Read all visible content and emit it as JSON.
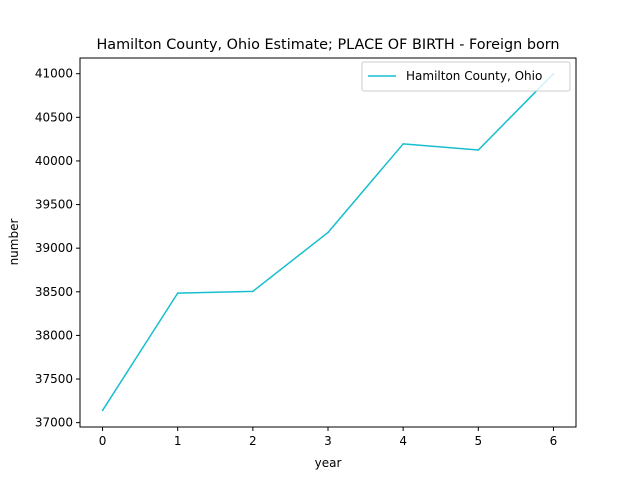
{
  "chart_data": {
    "type": "line",
    "title": "Hamilton County, Ohio Estimate; PLACE OF BIRTH - Foreign born",
    "xlabel": "year",
    "ylabel": "number",
    "x": [
      0,
      1,
      2,
      3,
      4,
      5,
      6
    ],
    "xticks": [
      "0",
      "1",
      "2",
      "3",
      "4",
      "5",
      "6"
    ],
    "yticks": [
      "37000",
      "37500",
      "38000",
      "38500",
      "39000",
      "39500",
      "40000",
      "40500",
      "41000"
    ],
    "xlim": [
      -0.3,
      6.3
    ],
    "ylim": [
      36950,
      41180
    ],
    "series": [
      {
        "name": "Hamilton County, Ohio",
        "color": "#17becf",
        "values": [
          37140,
          38485,
          38505,
          39180,
          40195,
          40125,
          41000
        ]
      }
    ],
    "legend": "top-right",
    "grid": false
  }
}
